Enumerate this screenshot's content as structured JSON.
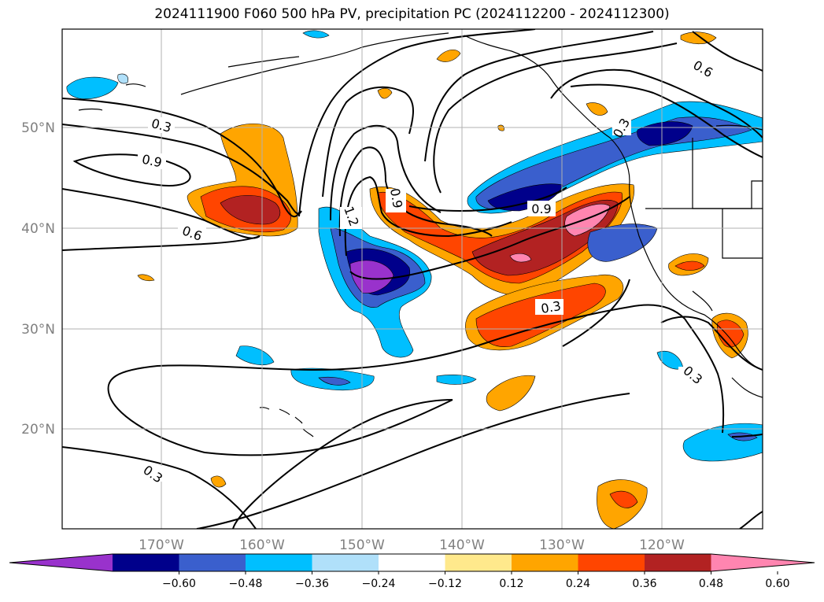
{
  "title": "2024111900 F060 500 hPa PV, precipitation PC (2024112200 - 2024112300)",
  "lat_labels": [
    "50°N",
    "40°N",
    "30°N",
    "20°N"
  ],
  "lon_labels": [
    "170°W",
    "160°W",
    "150°W",
    "140°W",
    "130°W",
    "120°W"
  ],
  "contour_labels": [
    "0.3",
    "0.9",
    "0.6",
    "1.2",
    "0.9",
    "0.9",
    "0.3",
    "0.3",
    "0.6",
    "0.3",
    "0.3"
  ],
  "colorbar": {
    "tick_labels": [
      "−0.60",
      "−0.48",
      "−0.36",
      "−0.24",
      "−0.12",
      "0.12",
      "0.24",
      "0.36",
      "0.48",
      "0.60"
    ],
    "colors": [
      "#9932cc",
      "#00008b",
      "#3a5fcd",
      "#00bfff",
      "#b0e0fa",
      "#ffffff",
      "#ffe98c",
      "#ffa500",
      "#ff4500",
      "#b22222",
      "#ff85b0"
    ]
  }
}
